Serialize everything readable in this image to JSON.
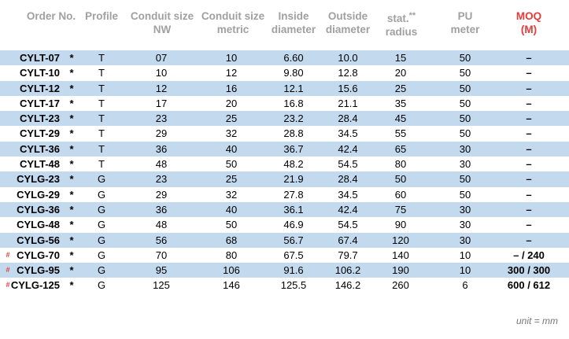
{
  "headers": {
    "order_no": "Order No.",
    "profile": "Profile",
    "conduit_nw_1": "Conduit size",
    "conduit_nw_2": "NW",
    "conduit_metric_1": "Conduit size",
    "conduit_metric_2": "metric",
    "inside_1": "Inside",
    "inside_2": "diameter",
    "outside_1": "Outside",
    "outside_2": "diameter",
    "radius_1": "stat.",
    "radius_stars": "**",
    "radius_2": "radius",
    "pu_1": "PU",
    "pu_2": "meter",
    "moq_1": "MOQ",
    "moq_2": "(M)"
  },
  "colors": {
    "header_gray": "#a0a0a0",
    "accent_red": "#e53b3b",
    "row_blue": "#c2d9ee"
  },
  "rows": [
    {
      "hash": "",
      "order": "CYLT-07",
      "star": "*",
      "profile": "T",
      "nw": "07",
      "metric": "10",
      "inside": "6.60",
      "outside": "10.0",
      "radius": "15",
      "pu": "50",
      "moq": "–"
    },
    {
      "hash": "",
      "order": "CYLT-10",
      "star": "*",
      "profile": "T",
      "nw": "10",
      "metric": "12",
      "inside": "9.80",
      "outside": "12.8",
      "radius": "20",
      "pu": "50",
      "moq": "–"
    },
    {
      "hash": "",
      "order": "CYLT-12",
      "star": "*",
      "profile": "T",
      "nw": "12",
      "metric": "16",
      "inside": "12.1",
      "outside": "15.6",
      "radius": "25",
      "pu": "50",
      "moq": "–"
    },
    {
      "hash": "",
      "order": "CYLT-17",
      "star": "*",
      "profile": "T",
      "nw": "17",
      "metric": "20",
      "inside": "16.8",
      "outside": "21.1",
      "radius": "35",
      "pu": "50",
      "moq": "–"
    },
    {
      "hash": "",
      "order": "CYLT-23",
      "star": "*",
      "profile": "T",
      "nw": "23",
      "metric": "25",
      "inside": "23.2",
      "outside": "28.4",
      "radius": "45",
      "pu": "50",
      "moq": "–"
    },
    {
      "hash": "",
      "order": "CYLT-29",
      "star": "*",
      "profile": "T",
      "nw": "29",
      "metric": "32",
      "inside": "28.8",
      "outside": "34.5",
      "radius": "55",
      "pu": "50",
      "moq": "–"
    },
    {
      "hash": "",
      "order": "CYLT-36",
      "star": "*",
      "profile": "T",
      "nw": "36",
      "metric": "40",
      "inside": "36.7",
      "outside": "42.4",
      "radius": "65",
      "pu": "30",
      "moq": "–"
    },
    {
      "hash": "",
      "order": "CYLT-48",
      "star": "*",
      "profile": "T",
      "nw": "48",
      "metric": "50",
      "inside": "48.2",
      "outside": "54.5",
      "radius": "80",
      "pu": "30",
      "moq": "–"
    },
    {
      "hash": "",
      "order": "CYLG-23",
      "star": "*",
      "profile": "G",
      "nw": "23",
      "metric": "25",
      "inside": "21.9",
      "outside": "28.4",
      "radius": "50",
      "pu": "50",
      "moq": "–"
    },
    {
      "hash": "",
      "order": "CYLG-29",
      "star": "*",
      "profile": "G",
      "nw": "29",
      "metric": "32",
      "inside": "27.8",
      "outside": "34.5",
      "radius": "60",
      "pu": "50",
      "moq": "–"
    },
    {
      "hash": "",
      "order": "CYLG-36",
      "star": "*",
      "profile": "G",
      "nw": "36",
      "metric": "40",
      "inside": "36.1",
      "outside": "42.4",
      "radius": "75",
      "pu": "30",
      "moq": "–"
    },
    {
      "hash": "",
      "order": "CYLG-48",
      "star": "*",
      "profile": "G",
      "nw": "48",
      "metric": "50",
      "inside": "46.9",
      "outside": "54.5",
      "radius": "90",
      "pu": "30",
      "moq": "–"
    },
    {
      "hash": "",
      "order": "CYLG-56",
      "star": "*",
      "profile": "G",
      "nw": "56",
      "metric": "68",
      "inside": "56.7",
      "outside": "67.4",
      "radius": "120",
      "pu": "30",
      "moq": "–"
    },
    {
      "hash": "#",
      "order": "CYLG-70",
      "star": "*",
      "profile": "G",
      "nw": "70",
      "metric": "80",
      "inside": "67.5",
      "outside": "79.7",
      "radius": "140",
      "pu": "10",
      "moq": "– / 240"
    },
    {
      "hash": "#",
      "order": "CYLG-95",
      "star": "*",
      "profile": "G",
      "nw": "95",
      "metric": "106",
      "inside": "91.6",
      "outside": "106.2",
      "radius": "190",
      "pu": "10",
      "moq": "300 / 300"
    },
    {
      "hash": "#",
      "order": "CYLG-125",
      "star": "*",
      "profile": "G",
      "nw": "125",
      "metric": "146",
      "inside": "125.5",
      "outside": "146.2",
      "radius": "260",
      "pu": "6",
      "moq": "600 / 612"
    }
  ],
  "footer": {
    "unit_note": "unit = mm"
  }
}
